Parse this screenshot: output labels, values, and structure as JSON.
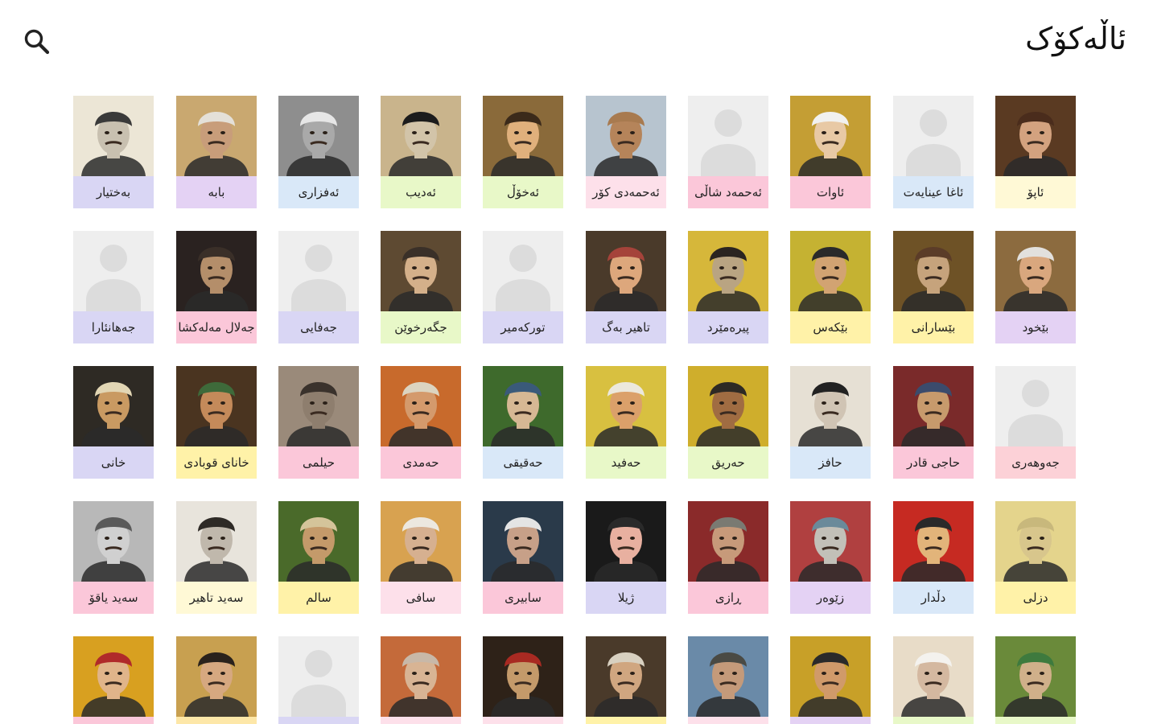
{
  "header": {
    "title": "ئاڵەکۆک",
    "search_icon": "search-icon"
  },
  "colors": {
    "placeholder_bg": "#eeeeee",
    "placeholder_fg": "#dcdcdc",
    "label_palette": [
      "#fff9d6",
      "#d9e8f8",
      "#fbc7d9",
      "#e4d2f4",
      "#e8f8c8",
      "#fde0ea",
      "#d9d6f4",
      "#fde7a8"
    ]
  },
  "poets": [
    {
      "name": "ئاپۆ",
      "photo": true,
      "bg": "#5a3a22",
      "skin": "#d3a27f",
      "hat": "#4a2c1c",
      "label": "#fff9d6"
    },
    {
      "name": "ئاغا عینایەت",
      "photo": false,
      "label": "#d9e8f8"
    },
    {
      "name": "ئاوات",
      "photo": true,
      "bg": "#c49e34",
      "skin": "#e8c9a5",
      "hat": "#f1f1ef",
      "label": "#fbc7d9"
    },
    {
      "name": "ئەحمەد شاڵی",
      "photo": false,
      "label": "#fbc7d9"
    },
    {
      "name": "ئەحمەدی کۆر",
      "photo": true,
      "bg": "#b7c4cf",
      "skin": "#b5845a",
      "hat": "#a87a4f",
      "label": "#fde0ea"
    },
    {
      "name": "ئەخۆڵ",
      "photo": true,
      "bg": "#8a6a3a",
      "skin": "#e0b07c",
      "hat": "#3b2a1a",
      "label": "#e8f8c8"
    },
    {
      "name": "ئەدیب",
      "photo": true,
      "bg": "#c9b48c",
      "skin": "#d2c4a9",
      "hat": "#1c1c1c",
      "label": "#e8f8c8"
    },
    {
      "name": "ئەفزاری",
      "photo": true,
      "bg": "#8e8e8e",
      "skin": "#a9a9a9",
      "hat": "#e6e6e6",
      "label": "#d9e8f8"
    },
    {
      "name": "بابە",
      "photo": true,
      "bg": "#c9a870",
      "skin": "#c89d7a",
      "hat": "#e4e0d8",
      "label": "#e4d2f4"
    },
    {
      "name": "بەختیار",
      "photo": true,
      "bg": "#ece6d6",
      "skin": "#c8c0b0",
      "hat": "#3a3a3a",
      "label": "#d9d6f4"
    },
    {
      "name": "بێخود",
      "photo": true,
      "bg": "#8c6b3f",
      "skin": "#d9a77e",
      "hat": "#e2e0dd",
      "label": "#e4d2f4"
    },
    {
      "name": "بێسارانی",
      "photo": true,
      "bg": "#6e5226",
      "skin": "#c6a37c",
      "hat": "#5b3c28",
      "label": "#fff2a8"
    },
    {
      "name": "بێکەس",
      "photo": true,
      "bg": "#c5b232",
      "skin": "#d2a372",
      "hat": "#2a2a2a",
      "label": "#fff2a8"
    },
    {
      "name": "پیرەمێرد",
      "photo": true,
      "bg": "#d6b73a",
      "skin": "#b9a482",
      "hat": "#2a2420",
      "label": "#d9d6f4"
    },
    {
      "name": "تاهیر بەگ",
      "photo": true,
      "bg": "#4a3a2a",
      "skin": "#dda77c",
      "hat": "#a5433a",
      "label": "#d9d6f4"
    },
    {
      "name": "تورکەمیر",
      "photo": false,
      "label": "#d9d6f4"
    },
    {
      "name": "جگەرخوێن",
      "photo": true,
      "bg": "#5e4a32",
      "skin": "#d4b08a",
      "hat": "#3a3028",
      "label": "#e8f8c8"
    },
    {
      "name": "جەفایی",
      "photo": false,
      "label": "#d9d6f4"
    },
    {
      "name": "جەلال مەلەکشا",
      "photo": true,
      "bg": "#2a2220",
      "skin": "#b48e6a",
      "hat": "#3a2f28",
      "label": "#fbc7d9"
    },
    {
      "name": "جەهانئارا",
      "photo": false,
      "label": "#d9d6f4"
    },
    {
      "name": "جەوهەری",
      "photo": false,
      "label": "#fcd1d7"
    },
    {
      "name": "حاجی قادر",
      "photo": true,
      "bg": "#7a2a2a",
      "skin": "#c79a6c",
      "hat": "#3b4b6c",
      "label": "#fbc7d9"
    },
    {
      "name": "حافز",
      "photo": true,
      "bg": "#e6e0d4",
      "skin": "#d0c4b4",
      "hat": "#222222",
      "label": "#d9e8f8"
    },
    {
      "name": "حەریق",
      "photo": true,
      "bg": "#cfae2c",
      "skin": "#a06c42",
      "hat": "#2e2a24",
      "label": "#e8f8c8"
    },
    {
      "name": "حەفید",
      "photo": true,
      "bg": "#d8c040",
      "skin": "#dba06a",
      "hat": "#ece8dc",
      "label": "#e8f8c8"
    },
    {
      "name": "حەقیقی",
      "photo": true,
      "bg": "#3e6a2c",
      "skin": "#d6b894",
      "hat": "#3a5a7a",
      "label": "#d9e8f8"
    },
    {
      "name": "حەمدی",
      "photo": true,
      "bg": "#c86a2c",
      "skin": "#d49a6c",
      "hat": "#dcd4c0",
      "label": "#fbc7d9"
    },
    {
      "name": "حیلمی",
      "photo": true,
      "bg": "#9a8a7a",
      "skin": "#8e7e6e",
      "hat": "#3a322c",
      "label": "#fbc7d9"
    },
    {
      "name": "خانای قوبادی",
      "photo": true,
      "bg": "#4a3420",
      "skin": "#c48a5a",
      "hat": "#3e6a3a",
      "label": "#fff2a8"
    },
    {
      "name": "خانی",
      "photo": true,
      "bg": "#2e2a24",
      "skin": "#c99a62",
      "hat": "#e2d6b4",
      "label": "#d9d6f4"
    },
    {
      "name": "دزلی",
      "photo": true,
      "bg": "#e4d48c",
      "skin": "#d8c68c",
      "hat": "#c8b87c",
      "label": "#fff2a8"
    },
    {
      "name": "دڵدار",
      "photo": true,
      "bg": "#c62a22",
      "skin": "#e2b47a",
      "hat": "#2a2a2a",
      "label": "#d9e8f8"
    },
    {
      "name": "زێوەر",
      "photo": true,
      "bg": "#b04040",
      "skin": "#c2c0b8",
      "hat": "#6a8a9a",
      "label": "#e4d2f4"
    },
    {
      "name": "ڕازی",
      "photo": true,
      "bg": "#8a2a2a",
      "skin": "#c79a7a",
      "hat": "#7a7a72",
      "label": "#fbc7d9"
    },
    {
      "name": "ژیلا",
      "photo": true,
      "bg": "#1a1a1a",
      "skin": "#e8b0a0",
      "hat": "#2a2a2a",
      "label": "#d9d6f4"
    },
    {
      "name": "سابیری",
      "photo": true,
      "bg": "#2a3a4a",
      "skin": "#c7a088",
      "hat": "#e4e4e4",
      "label": "#fbc7d9"
    },
    {
      "name": "سافی",
      "photo": true,
      "bg": "#d8a250",
      "skin": "#d6b090",
      "hat": "#ece8e0",
      "label": "#fde0ea"
    },
    {
      "name": "سالم",
      "photo": true,
      "bg": "#4a6a2a",
      "skin": "#c49a6a",
      "hat": "#d4c49a",
      "label": "#fff2a8"
    },
    {
      "name": "سەید تاهیر",
      "photo": true,
      "bg": "#e8e4dc",
      "skin": "#c0b8ac",
      "hat": "#2e2a26",
      "label": "#fff9d6"
    },
    {
      "name": "سەید یاقۆ",
      "photo": true,
      "bg": "#b8b8b8",
      "skin": "#d0d0d0",
      "hat": "#5a5a5a",
      "label": "#fbc7d9"
    },
    {
      "name": "",
      "photo": true,
      "bg": "#6a8a3a",
      "skin": "#d0b08a",
      "hat": "#3e7a3e",
      "label": "#e8f8c8"
    },
    {
      "name": "",
      "photo": true,
      "bg": "#e8dcc8",
      "skin": "#d4b8a0",
      "hat": "#f4f2ee",
      "label": "#e8f8c8"
    },
    {
      "name": "",
      "photo": true,
      "bg": "#c8a028",
      "skin": "#d09a6a",
      "hat": "#2a2a2a",
      "label": "#e4d2f4"
    },
    {
      "name": "",
      "photo": true,
      "bg": "#6a8aa8",
      "skin": "#c49a7a",
      "hat": "#4a4a44",
      "label": "#fde0ea"
    },
    {
      "name": "",
      "photo": true,
      "bg": "#4a3a2a",
      "skin": "#d0a680",
      "hat": "#d8d0c0",
      "label": "#fff2a8"
    },
    {
      "name": "",
      "photo": true,
      "bg": "#2e2218",
      "skin": "#c49a6a",
      "hat": "#a82a22",
      "label": "#fde0ea"
    },
    {
      "name": "",
      "photo": true,
      "bg": "#c46a3a",
      "skin": "#d8b494",
      "hat": "#c8b8a8",
      "label": "#fde0ea"
    },
    {
      "name": "",
      "photo": false,
      "label": "#d9d6f4"
    },
    {
      "name": "",
      "photo": true,
      "bg": "#c8a050",
      "skin": "#d6a880",
      "hat": "#2a221c",
      "label": "#fde7a8"
    },
    {
      "name": "",
      "photo": true,
      "bg": "#d8a020",
      "skin": "#e0b48a",
      "hat": "#b02a2a",
      "label": "#fbc7d9"
    }
  ]
}
